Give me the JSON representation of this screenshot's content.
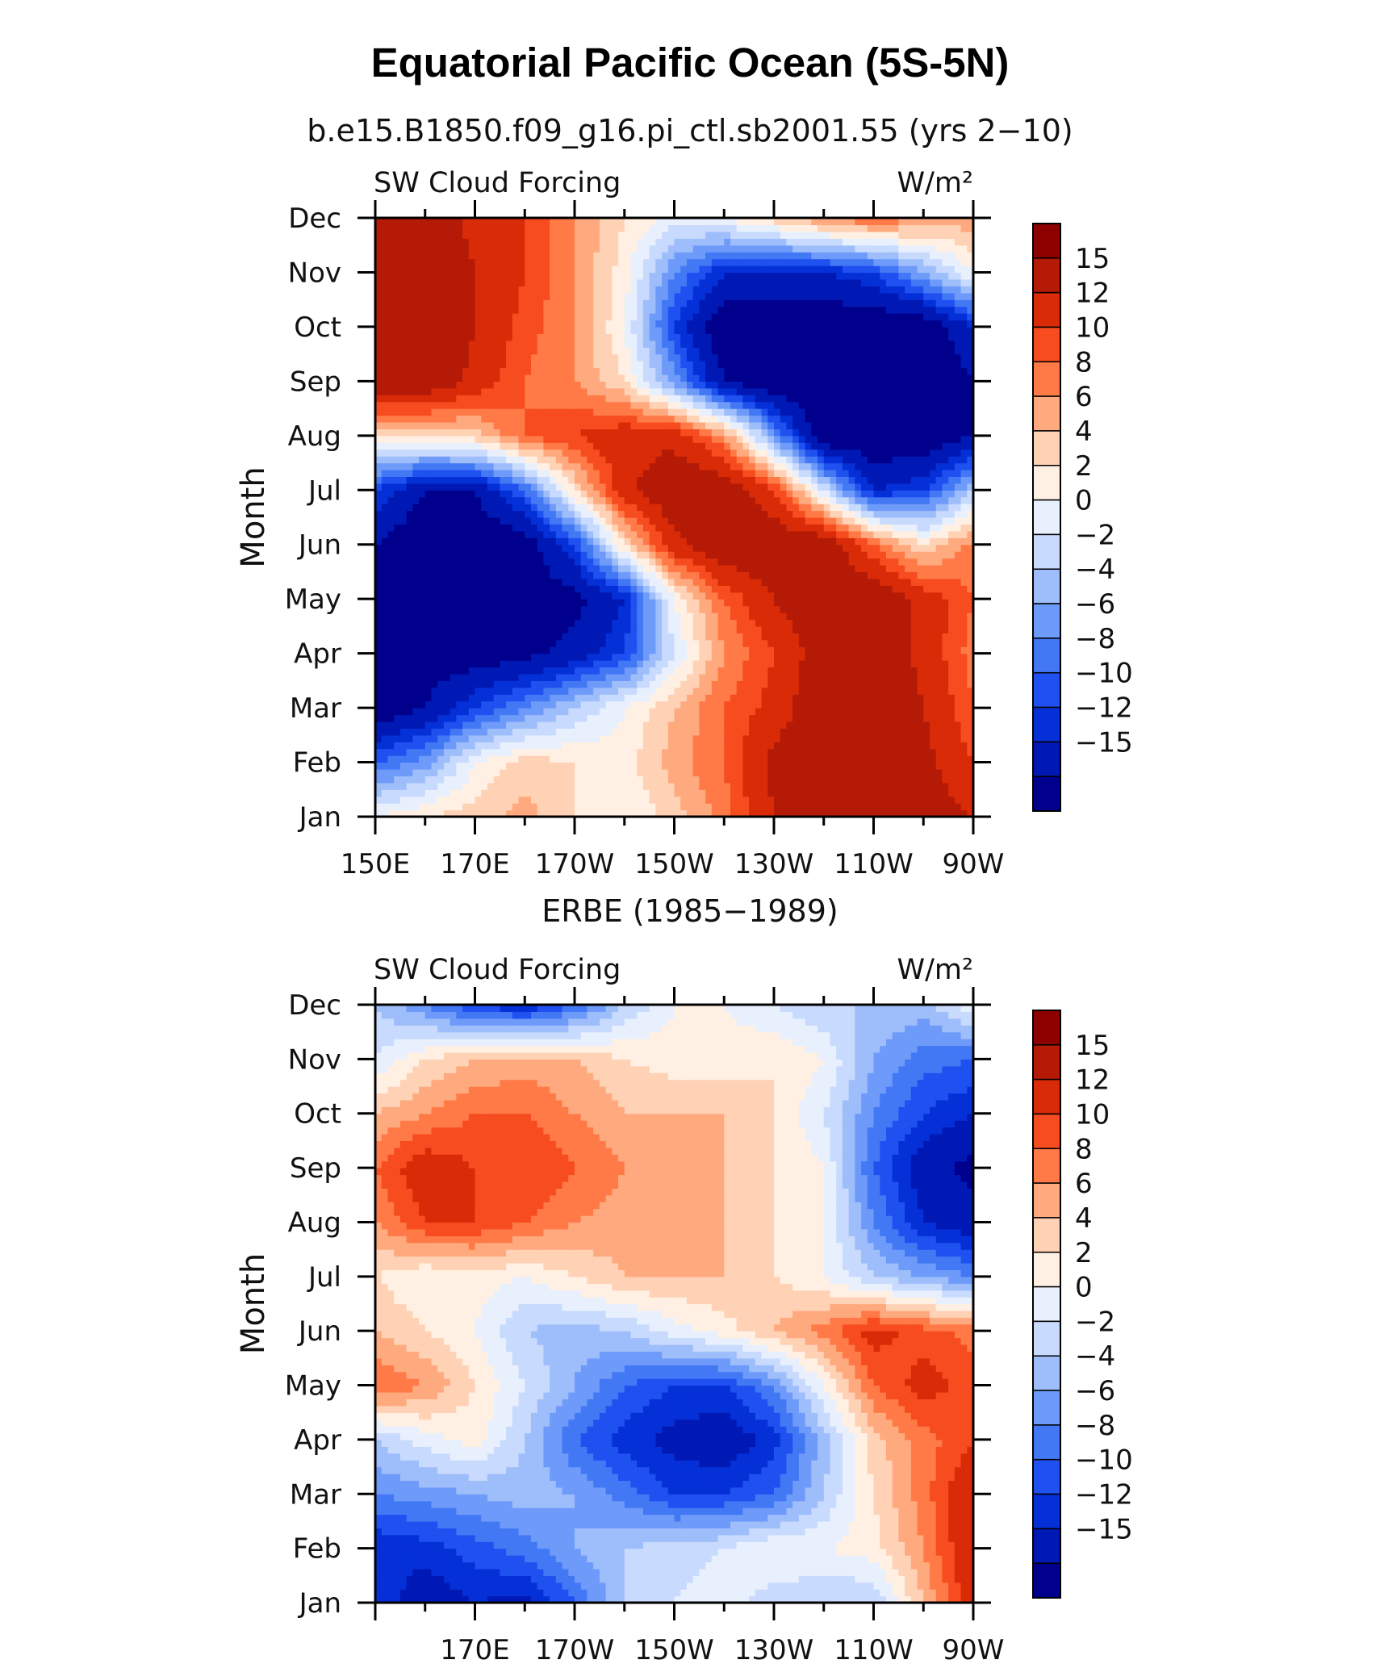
{
  "page": {
    "title": "Equatorial Pacific Ocean (5S-5N)"
  },
  "colorbar": {
    "levels": [
      -15,
      -12,
      -10,
      -8,
      -6,
      -4,
      -2,
      0,
      2,
      4,
      6,
      8,
      10,
      12,
      15
    ],
    "colors": [
      "#00008c",
      "#0019b4",
      "#0530d8",
      "#1f50f0",
      "#4378f5",
      "#6e9af9",
      "#9ebdfb",
      "#c8dafd",
      "#e8f0fe",
      "#fff0e3",
      "#ffd1b5",
      "#ffa97f",
      "#ff7a46",
      "#f64c1f",
      "#d92b08",
      "#b41a06",
      "#8c0000"
    ]
  },
  "chart_data": [
    {
      "type": "heatmap",
      "subtitle": "b.e15.B1850.f09_g16.pi_ctl.sb2001.55 (yrs 2−10)",
      "left_label": "SW Cloud Forcing",
      "right_label": "W/m²",
      "ylabel": "Month",
      "x_ticks": [
        "150E",
        "170E",
        "170W",
        "150W",
        "130W",
        "110W",
        "90W"
      ],
      "y_ticks": [
        "Jan",
        "Feb",
        "Mar",
        "Apr",
        "May",
        "Jun",
        "Jul",
        "Aug",
        "Sep",
        "Oct",
        "Nov",
        "Dec"
      ],
      "x_range": [
        150,
        270
      ],
      "colorbar_labels": [
        "15",
        "12",
        "10",
        "8",
        "6",
        "4",
        "2",
        "0",
        "−2",
        "−4",
        "−6",
        "−8",
        "−10",
        "−12",
        "−15"
      ],
      "grid_lon": [
        150,
        160,
        170,
        180,
        190,
        200,
        210,
        220,
        230,
        240,
        250,
        260,
        270
      ],
      "z": [
        [
          2,
          4,
          5,
          7,
          4,
          2,
          5,
          9,
          15,
          18,
          18,
          17,
          15
        ],
        [
          -8,
          -5,
          2,
          5,
          4,
          3,
          7,
          10,
          16,
          18,
          18,
          16,
          12
        ],
        [
          -18,
          -15,
          -10,
          -6,
          -2,
          2,
          6,
          10,
          13,
          18,
          18,
          15,
          10
        ],
        [
          -18,
          -17,
          -17,
          -16,
          -14,
          -10,
          0,
          8,
          12,
          17,
          18,
          14,
          9
        ],
        [
          -18,
          -17,
          -17,
          -17,
          -16,
          -12,
          2,
          10,
          15,
          18,
          18,
          14,
          10
        ],
        [
          -15,
          -18,
          -18,
          -17,
          -10,
          4,
          14,
          18,
          18,
          18,
          10,
          4,
          9
        ],
        [
          -10,
          -15,
          -15,
          -8,
          4,
          14,
          18,
          18,
          12,
          0,
          -12,
          -10,
          -2
        ],
        [
          4,
          4,
          5,
          10,
          12,
          14,
          14,
          8,
          -5,
          -18,
          -18,
          -18,
          -15
        ],
        [
          18,
          18,
          14,
          10,
          8,
          4,
          -5,
          -15,
          -18,
          -18,
          -18,
          -18,
          -15
        ],
        [
          18,
          18,
          15,
          11,
          8,
          2,
          -10,
          -18,
          -18,
          -18,
          -18,
          -18,
          -12
        ],
        [
          18,
          18,
          15,
          12,
          8,
          3,
          -6,
          -12,
          -12,
          -12,
          -10,
          -4,
          2
        ],
        [
          18,
          17,
          14,
          12,
          8,
          4,
          1,
          2,
          5,
          8,
          10,
          8,
          7
        ]
      ]
    },
    {
      "type": "heatmap",
      "subtitle": "ERBE (1985−1989)",
      "left_label": "SW Cloud Forcing",
      "right_label": "W/m²",
      "ylabel": "Month",
      "x_ticks": [
        "170E",
        "170W",
        "150W",
        "130W",
        "110W",
        "90W"
      ],
      "y_ticks": [
        "Jan",
        "Feb",
        "Mar",
        "Apr",
        "May",
        "Jun",
        "Jul",
        "Aug",
        "Sep",
        "Oct",
        "Nov",
        "Dec"
      ],
      "x_range": [
        150,
        270
      ],
      "colorbar_labels": [
        "15",
        "12",
        "10",
        "8",
        "6",
        "4",
        "2",
        "0",
        "−2",
        "−4",
        "−6",
        "−8",
        "−10",
        "−12",
        "−15"
      ],
      "grid_lon": [
        150,
        160,
        170,
        180,
        190,
        200,
        210,
        220,
        230,
        240,
        250,
        260,
        270
      ],
      "z": [
        [
          -10,
          -14,
          -12,
          -13,
          -8,
          -2,
          0,
          1,
          -1,
          -2,
          -2,
          6,
          14
        ],
        [
          -12,
          -11,
          -9,
          -7,
          -4,
          -2,
          -1,
          0,
          2,
          2,
          3,
          8,
          15
        ],
        [
          -6,
          -5,
          -4,
          -3,
          -4,
          -7,
          -10,
          -10,
          -8,
          -2,
          4,
          9,
          15
        ],
        [
          -2,
          1,
          3,
          -2,
          -8,
          -11,
          -13,
          -14,
          -11,
          -3,
          5,
          9,
          12
        ],
        [
          10,
          8,
          4,
          0,
          -4,
          -8,
          -10,
          -10,
          -6,
          2,
          10,
          13,
          11
        ],
        [
          6,
          4,
          2,
          -2,
          -3,
          -2,
          1,
          3,
          6,
          9,
          13,
          11,
          9
        ],
        [
          4,
          2,
          3,
          2,
          4,
          6,
          6,
          6,
          4,
          2,
          -2,
          -4,
          -6
        ],
        [
          8,
          12,
          12,
          10,
          8,
          7,
          8,
          6,
          4,
          2,
          -6,
          -12,
          -14
        ],
        [
          10,
          14,
          12,
          12,
          10,
          8,
          7,
          6,
          4,
          2,
          -8,
          -14,
          -16
        ],
        [
          6,
          8,
          10,
          10,
          8,
          6,
          6,
          6,
          4,
          0,
          -6,
          -10,
          -12
        ],
        [
          0,
          4,
          6,
          7,
          6,
          4,
          3,
          3,
          4,
          2,
          -4,
          -7,
          -8
        ],
        [
          -2,
          -6,
          -10,
          -12,
          -8,
          -2,
          2,
          2,
          0,
          -2,
          -2,
          -3,
          2
        ]
      ]
    }
  ]
}
